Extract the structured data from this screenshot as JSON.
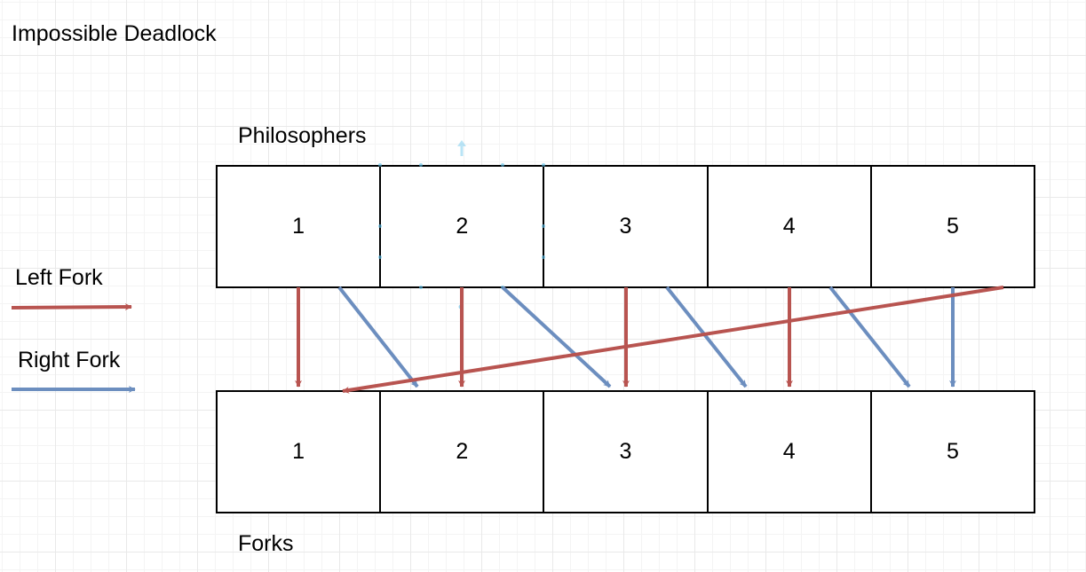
{
  "title": "Impossible Deadlock",
  "philosophers": {
    "label": "Philosophers",
    "items": [
      "1",
      "2",
      "3",
      "4",
      "5"
    ]
  },
  "forks": {
    "label": "Forks",
    "items": [
      "1",
      "2",
      "3",
      "4",
      "5"
    ]
  },
  "legend": {
    "left_fork": "Left Fork",
    "right_fork": "Right Fork"
  },
  "colors": {
    "left_fork": "#b85450",
    "right_fork": "#6c8ebf",
    "selection": "#5bc0eb"
  },
  "assignments": [
    {
      "philosopher": "1",
      "left_fork": "1",
      "right_fork": "2"
    },
    {
      "philosopher": "2",
      "left_fork": "2",
      "right_fork": "3"
    },
    {
      "philosopher": "3",
      "left_fork": "3",
      "right_fork": "4"
    },
    {
      "philosopher": "4",
      "left_fork": "4",
      "right_fork": "5"
    },
    {
      "philosopher": "5",
      "left_fork": "1",
      "right_fork": "5"
    }
  ]
}
